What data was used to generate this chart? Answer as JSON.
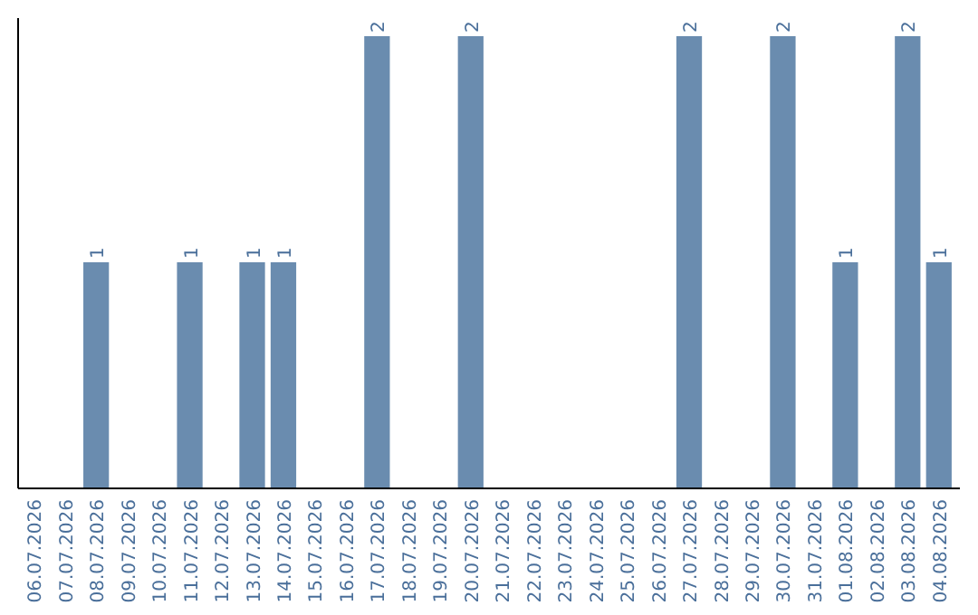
{
  "chart_data": {
    "type": "bar",
    "categories": [
      "06.07.2026",
      "07.07.2026",
      "08.07.2026",
      "09.07.2026",
      "10.07.2026",
      "11.07.2026",
      "12.07.2026",
      "13.07.2026",
      "14.07.2026",
      "15.07.2026",
      "16.07.2026",
      "17.07.2026",
      "18.07.2026",
      "19.07.2026",
      "20.07.2026",
      "21.07.2026",
      "22.07.2026",
      "23.07.2026",
      "24.07.2026",
      "25.07.2026",
      "26.07.2026",
      "27.07.2026",
      "28.07.2026",
      "29.07.2026",
      "30.07.2026",
      "31.07.2026",
      "01.08.2026",
      "02.08.2026",
      "03.08.2026",
      "04.08.2026"
    ],
    "values": [
      0,
      0,
      1,
      0,
      0,
      1,
      0,
      1,
      1,
      0,
      0,
      2,
      0,
      0,
      2,
      0,
      0,
      0,
      0,
      0,
      0,
      2,
      0,
      0,
      2,
      0,
      1,
      0,
      2,
      1
    ],
    "value_labels": [
      null,
      null,
      "1",
      null,
      null,
      "1",
      null,
      "1",
      "1",
      null,
      null,
      "2",
      null,
      null,
      "2",
      null,
      null,
      null,
      null,
      null,
      null,
      "2",
      null,
      null,
      "2",
      null,
      "1",
      null,
      "2",
      "1"
    ],
    "color": "#6a8caf",
    "ylim": [
      0,
      2
    ]
  }
}
